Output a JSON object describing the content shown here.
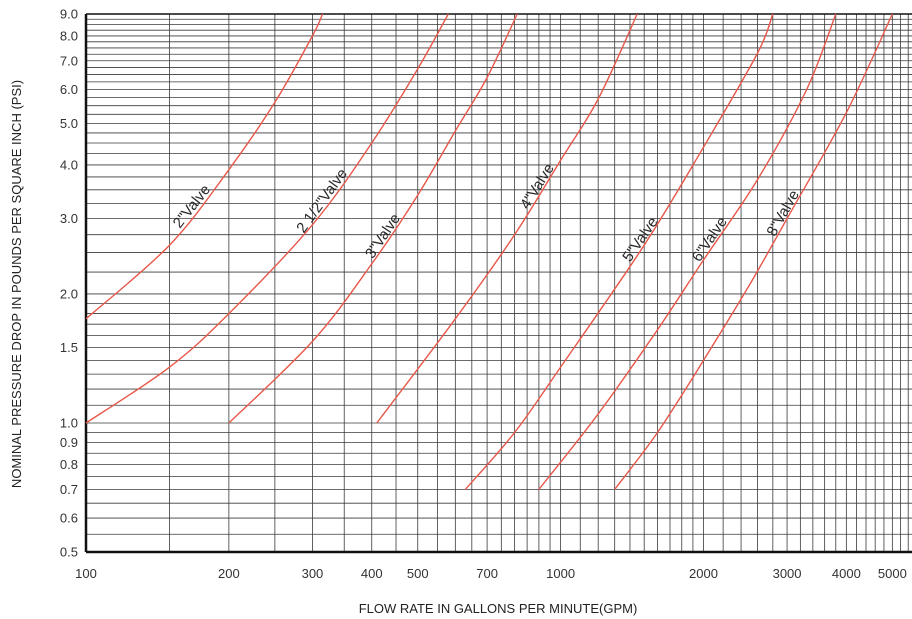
{
  "chart_data": {
    "type": "line",
    "xlabel": "FLOW RATE IN GALLONS PER MINUTE(GPM)",
    "ylabel": "NOMINAL PRESSURE DROP IN POUNDS PER SQUARE INCH (PSI)",
    "x_scale": "log",
    "y_scale": "log",
    "xlim": [
      100,
      5500
    ],
    "ylim": [
      0.5,
      9.0
    ],
    "grid": true,
    "x_ticks": [
      {
        "value": 100,
        "label": "100"
      },
      {
        "value": 200,
        "label": "200"
      },
      {
        "value": 300,
        "label": "300"
      },
      {
        "value": 400,
        "label": "400"
      },
      {
        "value": 500,
        "label": "500"
      },
      {
        "value": 700,
        "label": "700"
      },
      {
        "value": 1000,
        "label": "1000"
      },
      {
        "value": 2000,
        "label": "2000"
      },
      {
        "value": 3000,
        "label": "3000"
      },
      {
        "value": 4000,
        "label": "4000"
      },
      {
        "value": 5000,
        "label": "5000"
      }
    ],
    "y_ticks": [
      {
        "value": 0.5,
        "label": "0.5"
      },
      {
        "value": 0.6,
        "label": "0.6"
      },
      {
        "value": 0.7,
        "label": "0.7"
      },
      {
        "value": 0.8,
        "label": "0.8"
      },
      {
        "value": 0.9,
        "label": "0.9"
      },
      {
        "value": 1.0,
        "label": "1.0"
      },
      {
        "value": 1.5,
        "label": "1.5"
      },
      {
        "value": 2.0,
        "label": "2.0"
      },
      {
        "value": 3.0,
        "label": "3.0"
      },
      {
        "value": 4.0,
        "label": "4.0"
      },
      {
        "value": 5.0,
        "label": "5.0"
      },
      {
        "value": 6.0,
        "label": "6.0"
      },
      {
        "value": 7.0,
        "label": "7.0"
      },
      {
        "value": 8.0,
        "label": "8.0"
      },
      {
        "value": 9.0,
        "label": "9.0"
      }
    ],
    "series_color": "#e8574a",
    "series": [
      {
        "name": "2\"Valve",
        "points": [
          [
            100,
            1.75
          ],
          [
            150,
            2.6
          ],
          [
            200,
            3.9
          ],
          [
            250,
            5.6
          ],
          [
            300,
            8.0
          ],
          [
            315,
            9.0
          ]
        ]
      },
      {
        "name": "2 1/2\"Valve",
        "points": [
          [
            100,
            1.0
          ],
          [
            150,
            1.35
          ],
          [
            200,
            1.8
          ],
          [
            300,
            2.9
          ],
          [
            400,
            4.5
          ],
          [
            500,
            6.7
          ],
          [
            580,
            9.0
          ]
        ]
      },
      {
        "name": "3\"Valve",
        "points": [
          [
            200,
            1.0
          ],
          [
            300,
            1.55
          ],
          [
            400,
            2.35
          ],
          [
            500,
            3.4
          ],
          [
            600,
            4.8
          ],
          [
            700,
            6.4
          ],
          [
            810,
            9.0
          ]
        ]
      },
      {
        "name": "4\"Valve",
        "points": [
          [
            410,
            1.0
          ],
          [
            600,
            1.75
          ],
          [
            800,
            2.75
          ],
          [
            1000,
            4.1
          ],
          [
            1200,
            5.7
          ],
          [
            1450,
            9.0
          ]
        ]
      },
      {
        "name": "5\"Valve",
        "points": [
          [
            630,
            0.7
          ],
          [
            800,
            0.95
          ],
          [
            1000,
            1.35
          ],
          [
            1500,
            2.6
          ],
          [
            2000,
            4.4
          ],
          [
            2600,
            7.3
          ],
          [
            2800,
            9.0
          ]
        ]
      },
      {
        "name": "6\"Valve",
        "points": [
          [
            900,
            0.7
          ],
          [
            1200,
            1.05
          ],
          [
            1600,
            1.65
          ],
          [
            2000,
            2.4
          ],
          [
            2600,
            3.7
          ],
          [
            3300,
            6.0
          ],
          [
            3800,
            9.0
          ]
        ]
      },
      {
        "name": "8\"Valve",
        "points": [
          [
            1300,
            0.7
          ],
          [
            1600,
            0.95
          ],
          [
            2000,
            1.4
          ],
          [
            2500,
            2.1
          ],
          [
            3000,
            3.0
          ],
          [
            4000,
            5.3
          ],
          [
            5000,
            9.0
          ]
        ]
      }
    ]
  }
}
